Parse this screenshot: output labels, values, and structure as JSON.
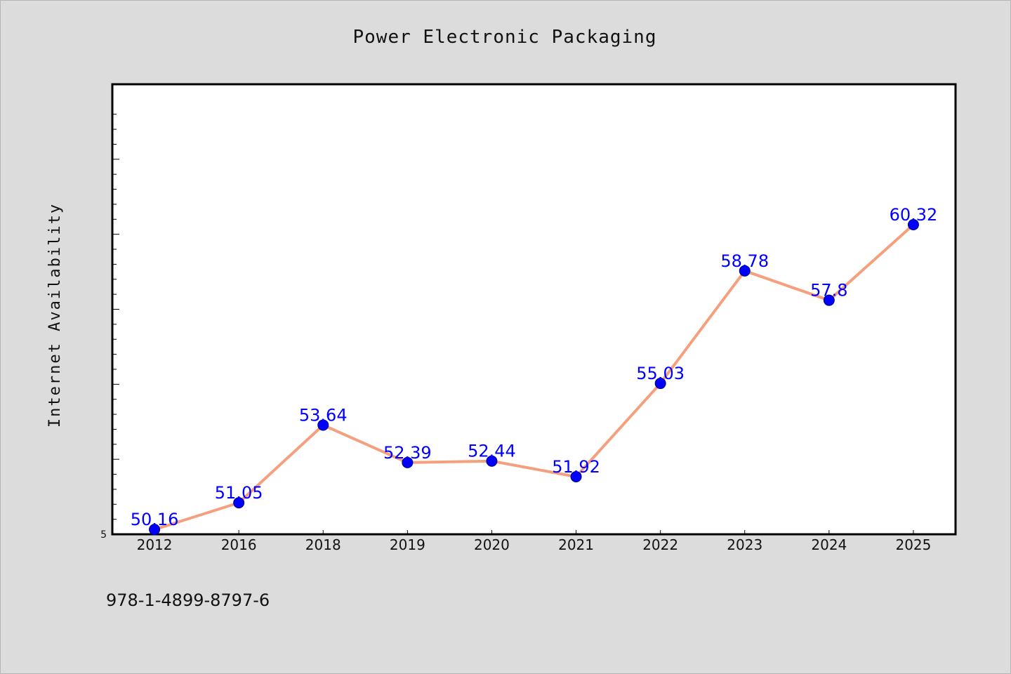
{
  "chart_data": {
    "type": "line",
    "title": "Power Electronic Packaging",
    "xlabel": "",
    "ylabel": "Internet Availability",
    "categories": [
      "2012",
      "2016",
      "2018",
      "2019",
      "2020",
      "2021",
      "2022",
      "2023",
      "2024",
      "2025"
    ],
    "values": [
      50.16,
      51.05,
      53.64,
      52.39,
      52.44,
      51.92,
      55.03,
      58.78,
      57.8,
      60.32
    ],
    "data_labels": [
      "50.16",
      "51.05",
      "53.64",
      "52.39",
      "52.44",
      "51.92",
      "55.03",
      "58.78",
      "57.8",
      "60.32"
    ],
    "ylim": [
      50,
      65
    ],
    "ytick_label": "5",
    "grid": false,
    "legend": "none",
    "line_color": "#f4a07e",
    "marker_color": "#0000ff",
    "label_color": "#0000ff"
  },
  "footer": {
    "code": "978-1-4899-8797-6"
  }
}
